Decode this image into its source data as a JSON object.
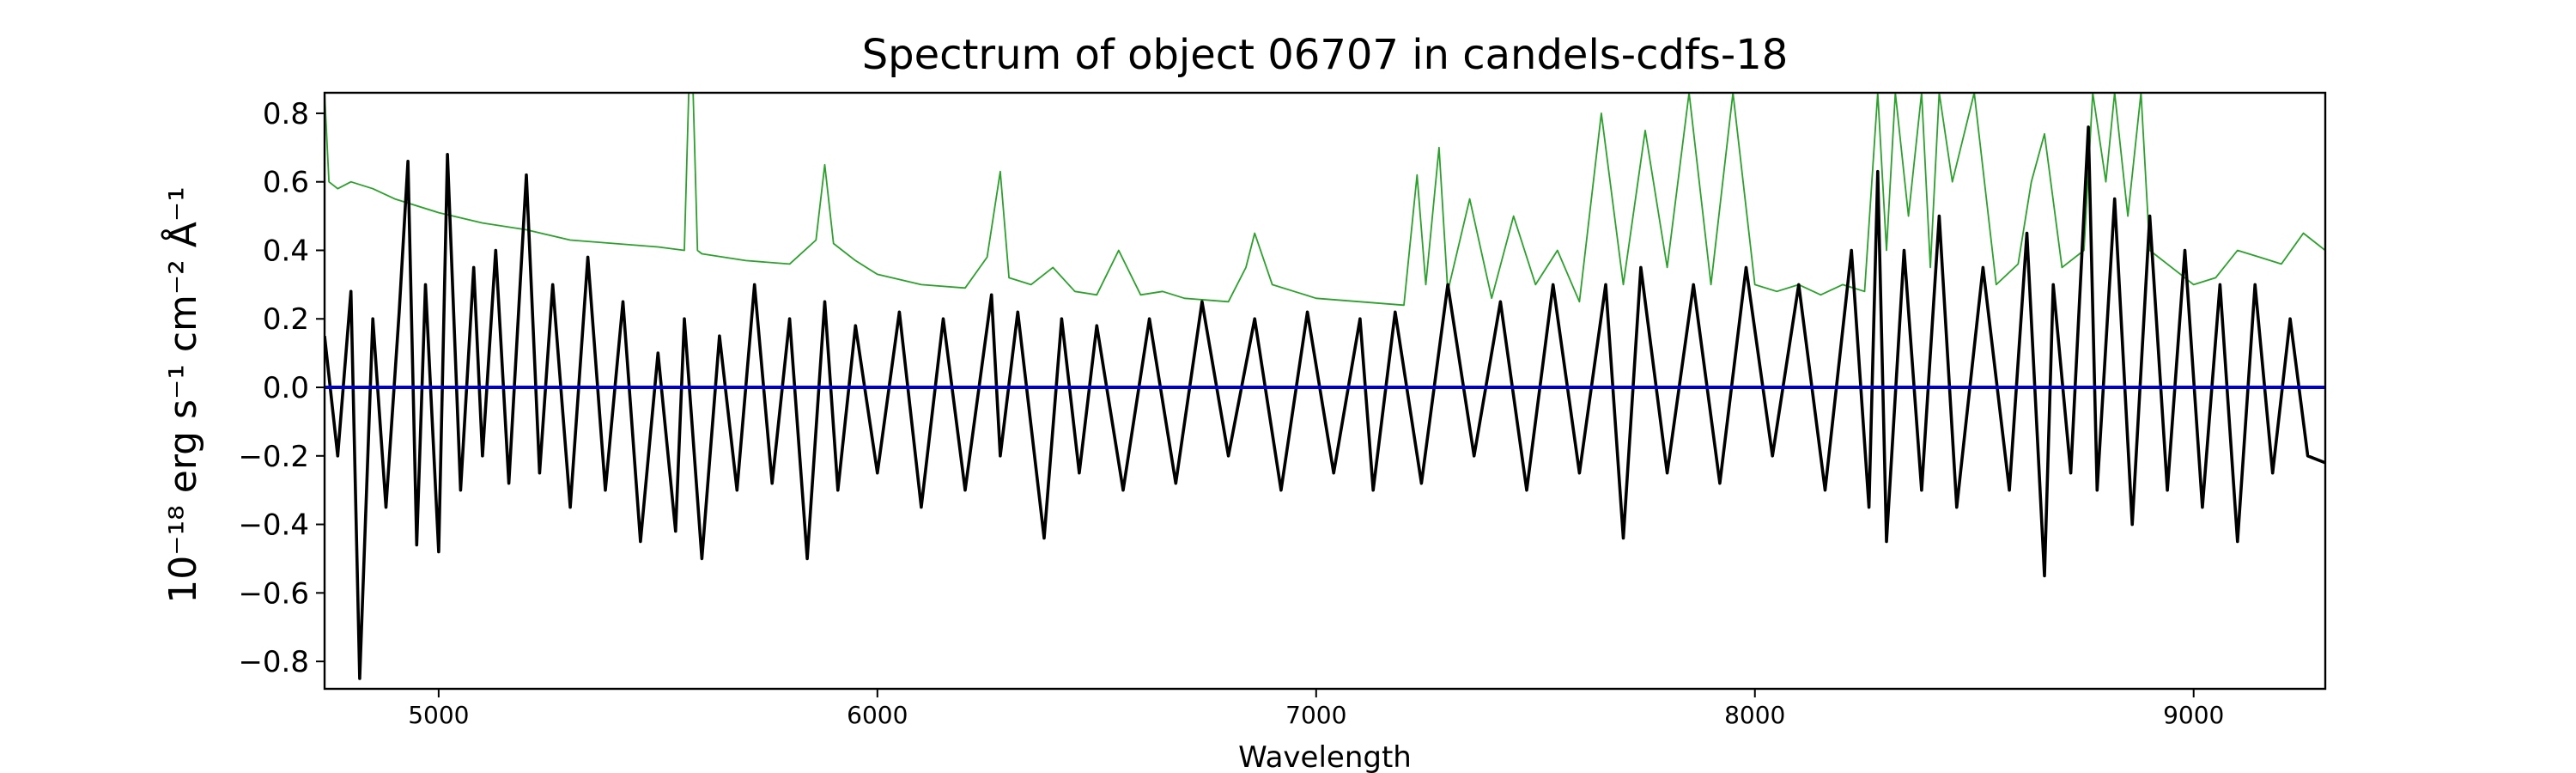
{
  "chart_data": {
    "type": "line",
    "title": "Spectrum of object 06707 in candels-cdfs-18",
    "xlabel": "Wavelength",
    "ylabel": "10⁻¹⁸ erg s⁻¹ cm⁻² Å⁻¹",
    "xlim": [
      4740,
      9300
    ],
    "ylim": [
      -0.88,
      0.86
    ],
    "xticks": [
      5000,
      6000,
      7000,
      8000,
      9000
    ],
    "yticks": [
      -0.8,
      -0.6,
      -0.4,
      -0.2,
      0.0,
      0.2,
      0.4,
      0.6,
      0.8
    ],
    "ytick_labels": [
      "−0.8",
      "−0.6",
      "−0.4",
      "−0.2",
      "0.0",
      "0.2",
      "0.4",
      "0.6",
      "0.8"
    ],
    "grid": false,
    "series": [
      {
        "role": "noise",
        "color": "#2ca02c",
        "x": [
          4740,
          4750,
          4770,
          4800,
          4850,
          4900,
          5000,
          5100,
          5200,
          5300,
          5400,
          5500,
          5560,
          5570,
          5580,
          5590,
          5600,
          5700,
          5800,
          5860,
          5880,
          5900,
          5950,
          6000,
          6100,
          6200,
          6250,
          6280,
          6300,
          6350,
          6400,
          6450,
          6500,
          6550,
          6600,
          6650,
          6700,
          6800,
          6840,
          6860,
          6900,
          6950,
          7000,
          7100,
          7200,
          7230,
          7250,
          7280,
          7300,
          7350,
          7400,
          7450,
          7500,
          7550,
          7600,
          7650,
          7700,
          7750,
          7800,
          7850,
          7900,
          7950,
          8000,
          8050,
          8100,
          8150,
          8200,
          8250,
          8280,
          8300,
          8320,
          8350,
          8380,
          8400,
          8420,
          8450,
          8500,
          8550,
          8600,
          8630,
          8660,
          8700,
          8750,
          8770,
          8800,
          8820,
          8850,
          8880,
          8900,
          8950,
          9000,
          9050,
          9100,
          9150,
          9200,
          9250,
          9300
        ],
        "y": [
          0.86,
          0.6,
          0.58,
          0.6,
          0.58,
          0.55,
          0.51,
          0.48,
          0.46,
          0.43,
          0.42,
          0.41,
          0.4,
          0.86,
          0.86,
          0.4,
          0.39,
          0.37,
          0.36,
          0.43,
          0.65,
          0.42,
          0.37,
          0.33,
          0.3,
          0.29,
          0.38,
          0.63,
          0.32,
          0.3,
          0.35,
          0.28,
          0.27,
          0.4,
          0.27,
          0.28,
          0.26,
          0.25,
          0.35,
          0.45,
          0.3,
          0.28,
          0.26,
          0.25,
          0.24,
          0.62,
          0.3,
          0.7,
          0.28,
          0.55,
          0.26,
          0.5,
          0.3,
          0.4,
          0.25,
          0.8,
          0.3,
          0.75,
          0.35,
          0.86,
          0.3,
          0.86,
          0.3,
          0.28,
          0.3,
          0.27,
          0.3,
          0.28,
          0.86,
          0.4,
          0.86,
          0.5,
          0.86,
          0.35,
          0.86,
          0.6,
          0.86,
          0.3,
          0.36,
          0.6,
          0.74,
          0.35,
          0.4,
          0.86,
          0.6,
          0.86,
          0.5,
          0.86,
          0.4,
          0.35,
          0.3,
          0.32,
          0.4,
          0.38,
          0.36,
          0.45,
          0.4
        ]
      },
      {
        "role": "flux",
        "color": "#000000",
        "x": [
          4740,
          4770,
          4800,
          4820,
          4850,
          4880,
          4910,
          4930,
          4950,
          4970,
          5000,
          5020,
          5050,
          5080,
          5100,
          5130,
          5160,
          5200,
          5230,
          5260,
          5300,
          5340,
          5380,
          5420,
          5460,
          5500,
          5540,
          5560,
          5600,
          5640,
          5680,
          5720,
          5760,
          5800,
          5840,
          5880,
          5910,
          5950,
          6000,
          6050,
          6100,
          6150,
          6200,
          6260,
          6280,
          6320,
          6380,
          6420,
          6460,
          6500,
          6560,
          6620,
          6680,
          6740,
          6800,
          6860,
          6920,
          6980,
          7040,
          7100,
          7130,
          7180,
          7240,
          7300,
          7360,
          7420,
          7480,
          7540,
          7600,
          7660,
          7700,
          7740,
          7800,
          7860,
          7920,
          7980,
          8040,
          8100,
          8160,
          8220,
          8260,
          8280,
          8300,
          8340,
          8380,
          8420,
          8460,
          8520,
          8580,
          8620,
          8660,
          8680,
          8720,
          8760,
          8780,
          8820,
          8860,
          8900,
          8940,
          8980,
          9020,
          9060,
          9100,
          9140,
          9180,
          9220,
          9260,
          9300
        ],
        "y": [
          0.15,
          -0.2,
          0.28,
          -0.85,
          0.2,
          -0.35,
          0.22,
          0.66,
          -0.46,
          0.3,
          -0.48,
          0.68,
          -0.3,
          0.35,
          -0.2,
          0.4,
          -0.28,
          0.62,
          -0.25,
          0.3,
          -0.35,
          0.38,
          -0.3,
          0.25,
          -0.45,
          0.1,
          -0.42,
          0.2,
          -0.5,
          0.15,
          -0.3,
          0.3,
          -0.28,
          0.2,
          -0.5,
          0.25,
          -0.3,
          0.18,
          -0.25,
          0.22,
          -0.35,
          0.2,
          -0.3,
          0.27,
          -0.2,
          0.22,
          -0.44,
          0.2,
          -0.25,
          0.18,
          -0.3,
          0.2,
          -0.28,
          0.25,
          -0.2,
          0.2,
          -0.3,
          0.22,
          -0.25,
          0.2,
          -0.3,
          0.22,
          -0.28,
          0.3,
          -0.2,
          0.25,
          -0.3,
          0.3,
          -0.25,
          0.3,
          -0.44,
          0.35,
          -0.25,
          0.3,
          -0.28,
          0.35,
          -0.2,
          0.3,
          -0.3,
          0.4,
          -0.35,
          0.63,
          -0.45,
          0.4,
          -0.3,
          0.5,
          -0.35,
          0.35,
          -0.3,
          0.45,
          -0.55,
          0.3,
          -0.25,
          0.76,
          -0.3,
          0.55,
          -0.4,
          0.5,
          -0.3,
          0.4,
          -0.35,
          0.3,
          -0.45,
          0.3,
          -0.25,
          0.2,
          -0.2,
          -0.22
        ]
      },
      {
        "role": "model",
        "color": "#0000cc",
        "x": [
          4740,
          9300
        ],
        "y": [
          0.0,
          0.0
        ]
      }
    ]
  }
}
